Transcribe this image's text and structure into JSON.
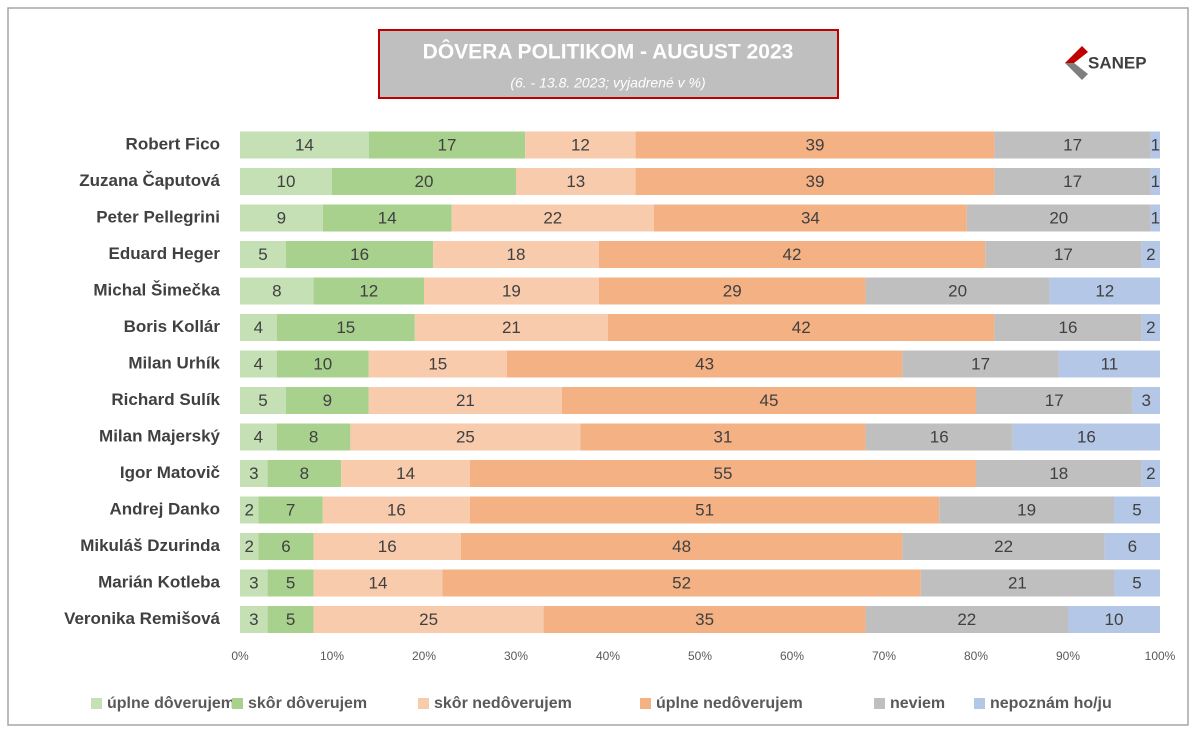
{
  "chart_data": {
    "type": "stacked_barh",
    "title": "DÔVERA POLITIKOM - AUGUST 2023",
    "subtitle": "(6. - 13.8. 2023; vyjadrené v %)",
    "logo": "SANEP",
    "categories": [
      "Robert Fico",
      "Zuzana Čaputová",
      "Peter Pellegrini",
      "Eduard Heger",
      "Michal Šimečka",
      "Boris Kollár",
      "Milan Urhík",
      "Richard Sulík",
      "Milan Majerský",
      "Igor Matovič",
      "Andrej Danko",
      "Mikuláš Dzurinda",
      "Marián Kotleba",
      "Veronika Remišová"
    ],
    "series": [
      {
        "name": "úplne dôverujem",
        "color": "#c5e0b4",
        "values": [
          14,
          10,
          9,
          5,
          8,
          4,
          4,
          5,
          4,
          3,
          2,
          2,
          3,
          3
        ]
      },
      {
        "name": "skôr dôverujem",
        "color": "#a9d18e",
        "values": [
          17,
          20,
          14,
          16,
          12,
          15,
          10,
          9,
          8,
          8,
          7,
          6,
          5,
          5
        ]
      },
      {
        "name": "skôr nedôverujem",
        "color": "#f8cbad",
        "values": [
          12,
          13,
          22,
          18,
          19,
          21,
          15,
          21,
          25,
          14,
          16,
          16,
          14,
          25
        ]
      },
      {
        "name": "úplne nedôverujem",
        "color": "#f4b183",
        "values": [
          39,
          39,
          34,
          42,
          29,
          42,
          43,
          45,
          31,
          55,
          51,
          48,
          52,
          35
        ]
      },
      {
        "name": "neviem",
        "color": "#bfbfbf",
        "values": [
          17,
          17,
          20,
          17,
          20,
          16,
          17,
          17,
          16,
          18,
          19,
          22,
          21,
          22
        ]
      },
      {
        "name": "nepoznám ho/ju",
        "color": "#b4c7e7",
        "values": [
          1,
          1,
          1,
          2,
          12,
          2,
          11,
          3,
          16,
          2,
          5,
          6,
          5,
          10
        ]
      }
    ],
    "xlim": [
      0,
      100
    ],
    "xticks": [
      {
        "value": 0,
        "label": "0%"
      },
      {
        "value": 10,
        "label": "10%"
      },
      {
        "value": 20,
        "label": "20%"
      },
      {
        "value": 30,
        "label": "30%"
      },
      {
        "value": 40,
        "label": "40%"
      },
      {
        "value": 50,
        "label": "50%"
      },
      {
        "value": 60,
        "label": "60%"
      },
      {
        "value": 70,
        "label": "70%"
      },
      {
        "value": 80,
        "label": "80%"
      },
      {
        "value": 90,
        "label": "90%"
      },
      {
        "value": 100,
        "label": "100%"
      }
    ],
    "grid": false,
    "legend": "bottom"
  }
}
